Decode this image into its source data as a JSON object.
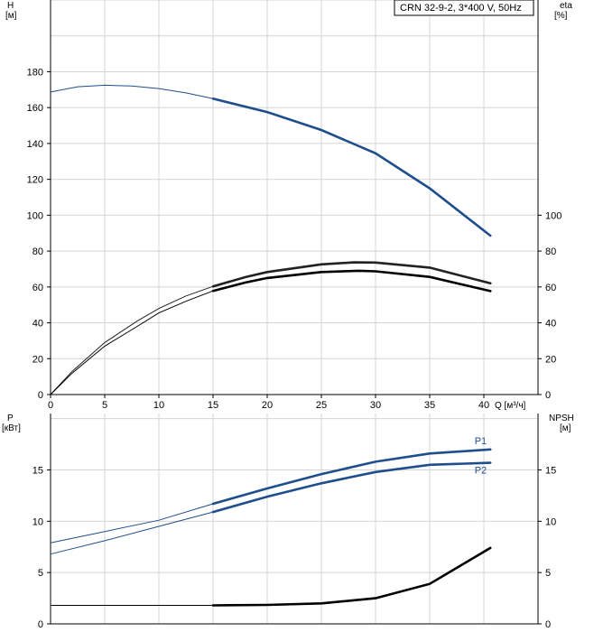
{
  "chart_data": [
    {
      "type": "line",
      "panel": "head-efficiency",
      "legend": "CRN 32-9-2, 3*400 V, 50Hz",
      "legend_placement": "top-right",
      "x_label": "Q [м³/ч]",
      "x_ticks": [
        "0",
        "5",
        "10",
        "15",
        "20",
        "25",
        "30",
        "35",
        "40"
      ],
      "xlim": [
        0,
        45
      ],
      "grid": true,
      "y_left": {
        "label_line1": "H",
        "label_line2": "[м]",
        "ticks": [
          "0",
          "20",
          "40",
          "60",
          "80",
          "100",
          "120",
          "140",
          "160",
          "180"
        ],
        "lim": [
          0,
          220
        ]
      },
      "y_right": {
        "label_line1": "eta",
        "label_line2": "[%]",
        "ticks": [
          "0",
          "20",
          "40",
          "60",
          "80",
          "100"
        ],
        "lim": [
          0,
          220
        ]
      },
      "series": [
        {
          "axis": "left",
          "color": "#1f4e8c",
          "thin": [
            [
              0,
              168.7
            ],
            [
              2.5,
              171.6
            ],
            [
              5,
              172.5
            ],
            [
              7.5,
              172.0
            ],
            [
              10,
              170.6
            ],
            [
              12.5,
              168.2
            ],
            [
              15,
              165.0
            ]
          ],
          "bold": [
            [
              15,
              165.0
            ],
            [
              20,
              157.5
            ],
            [
              25,
              147.5
            ],
            [
              30,
              134.5
            ],
            [
              35,
              115.0
            ],
            [
              40.6,
              88.6
            ]
          ]
        },
        {
          "axis": "right",
          "color": "#222222",
          "thin": [
            [
              0,
              0
            ],
            [
              2,
              13
            ],
            [
              5,
              29
            ],
            [
              8,
              41
            ],
            [
              10,
              48
            ],
            [
              12.5,
              55
            ],
            [
              15,
              60.3
            ]
          ],
          "bold": [
            [
              15,
              60.3
            ],
            [
              18,
              65.5
            ],
            [
              20,
              68.3
            ],
            [
              25,
              72.6
            ],
            [
              28,
              73.7
            ],
            [
              30,
              73.6
            ],
            [
              35,
              70.8
            ],
            [
              40.6,
              62.0
            ]
          ]
        },
        {
          "axis": "right",
          "color": "#000000",
          "thin": [
            [
              0,
              0
            ],
            [
              2,
              12
            ],
            [
              5,
              27
            ],
            [
              8,
              38
            ],
            [
              10,
              45.5
            ],
            [
              12.5,
              52
            ],
            [
              15,
              57.8
            ]
          ],
          "bold": [
            [
              15,
              57.8
            ],
            [
              18,
              62.5
            ],
            [
              20,
              65.0
            ],
            [
              25,
              68.3
            ],
            [
              28.5,
              69.0
            ],
            [
              30,
              68.7
            ],
            [
              35,
              65.6
            ],
            [
              40.6,
              57.7
            ]
          ]
        }
      ]
    },
    {
      "type": "line",
      "panel": "power-npsh",
      "x_ticks": [],
      "xlim": [
        0,
        45
      ],
      "grid": true,
      "y_left": {
        "label_line1": "P",
        "label_line2": "[кВт]",
        "ticks": [
          "0",
          "5",
          "10",
          "15"
        ],
        "lim": [
          0,
          20.5
        ]
      },
      "y_right": {
        "label_line1": "NPSH",
        "label_line2": "[м]",
        "ticks": [
          "0",
          "5",
          "10",
          "15"
        ],
        "lim": [
          0,
          20.5
        ]
      },
      "series": [
        {
          "name": "P1",
          "axis": "left",
          "color": "#1f4e8c",
          "thin": [
            [
              0,
              7.9
            ],
            [
              5,
              9.0
            ],
            [
              10,
              10.1
            ],
            [
              15,
              11.7
            ]
          ],
          "bold": [
            [
              15,
              11.7
            ],
            [
              20,
              13.2
            ],
            [
              25,
              14.6
            ],
            [
              30,
              15.8
            ],
            [
              35,
              16.6
            ],
            [
              40.6,
              17.0
            ]
          ]
        },
        {
          "name": "P2",
          "axis": "left",
          "color": "#1f4e8c",
          "thin": [
            [
              0,
              6.8
            ],
            [
              5,
              8.1
            ],
            [
              10,
              9.5
            ],
            [
              15,
              10.9
            ]
          ],
          "bold": [
            [
              15,
              10.9
            ],
            [
              20,
              12.4
            ],
            [
              25,
              13.7
            ],
            [
              30,
              14.8
            ],
            [
              35,
              15.5
            ],
            [
              40.6,
              15.7
            ]
          ]
        },
        {
          "name": "",
          "axis": "right",
          "color": "#000000",
          "thin": [
            [
              0,
              1.8
            ],
            [
              15,
              1.8
            ]
          ],
          "bold": [
            [
              15,
              1.8
            ],
            [
              20,
              1.85
            ],
            [
              25,
              2.0
            ],
            [
              30,
              2.5
            ],
            [
              35,
              3.9
            ],
            [
              40.6,
              7.4
            ]
          ]
        }
      ]
    }
  ]
}
